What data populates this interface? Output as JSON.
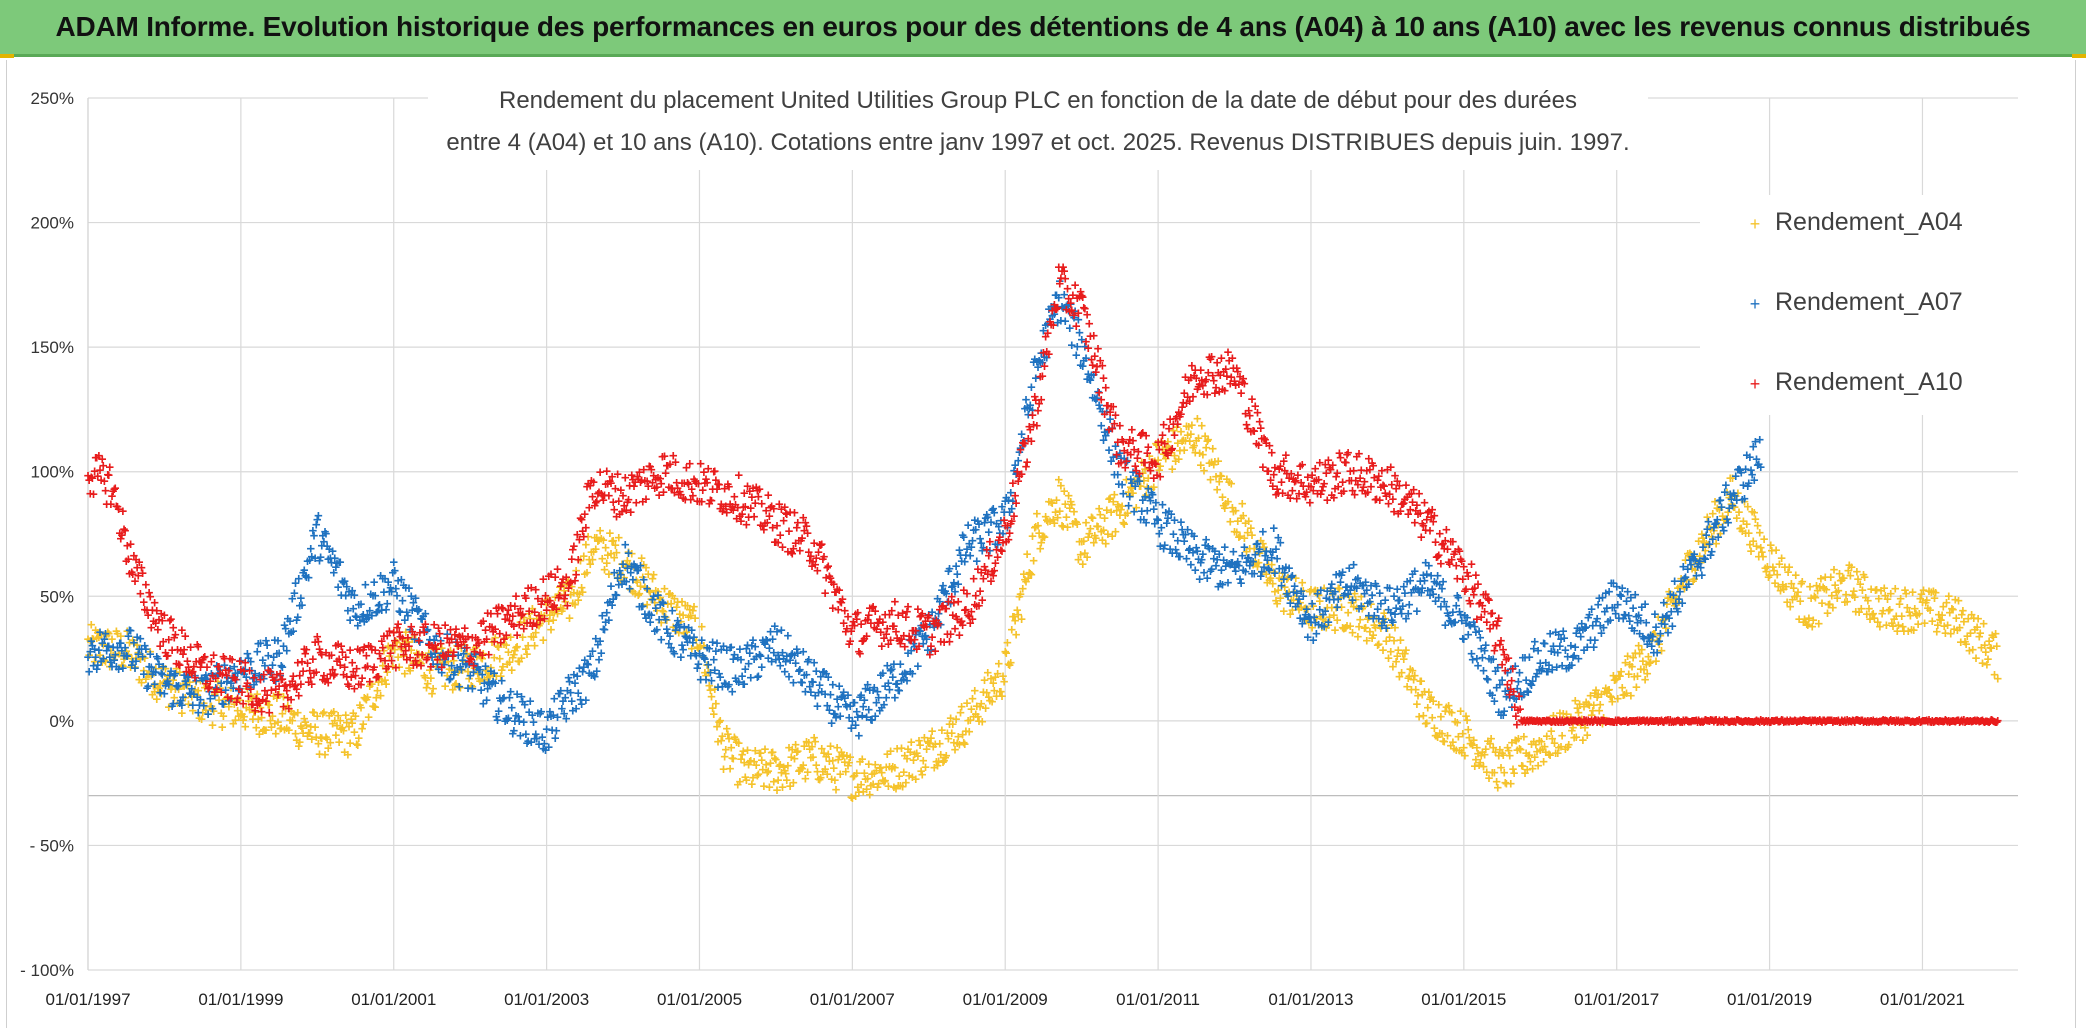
{
  "banner": {
    "title": "ADAM Informe. Evolution historique des performances en euros pour des détentions de 4 ans (A04) à 10 ans (A10) avec les revenus connus distribués"
  },
  "colors": {
    "banner_bg": "#7dc97a",
    "A04": "#f5c32c",
    "A07": "#1f72c0",
    "A10": "#e81c1c",
    "grid": "#d9d9d9"
  },
  "chart_data": {
    "type": "scatter",
    "title_line1": "Rendement du placement United Utilities Group PLC en fonction de la date de début pour des durées",
    "title_line2": "entre 4 (A04) et 10 ans (A10). Cotations entre janv 1997 et oct. 2025. Revenus DISTRIBUES depuis juin. 1997.",
    "xlabel": "",
    "ylabel": "",
    "xlim": [
      1997.0,
      2022.25
    ],
    "ylim": [
      -100,
      250
    ],
    "y_ticks": [
      250,
      200,
      150,
      100,
      50,
      0,
      -50,
      -100
    ],
    "y_tick_labels": [
      "250%",
      "200%",
      "150%",
      "100%",
      "50%",
      "0%",
      "- 50%",
      "- 100%"
    ],
    "x_ticks": [
      1997,
      1999,
      2001,
      2003,
      2005,
      2007,
      2009,
      2011,
      2013,
      2015,
      2017,
      2019,
      2021
    ],
    "x_tick_labels": [
      "01/01/1997",
      "01/01/1999",
      "01/01/2001",
      "01/01/2003",
      "01/01/2005",
      "01/01/2007",
      "01/01/2009",
      "01/01/2011",
      "01/01/2013",
      "01/01/2015",
      "01/01/2017",
      "01/01/2019",
      "01/01/2021"
    ],
    "legend": {
      "position": "top-right",
      "entries": [
        "Rendement_A04",
        "Rendement_A07",
        "Rendement_A10"
      ]
    },
    "series": [
      {
        "name": "Rendement_A04",
        "x": [
          1997.0,
          1997.5,
          1998.0,
          1998.5,
          1999.0,
          1999.5,
          2000.0,
          2000.5,
          2001.0,
          2001.5,
          2002.0,
          2002.5,
          2003.0,
          2003.3,
          2003.6,
          2004.0,
          2004.5,
          2005.0,
          2005.3,
          2005.6,
          2006.0,
          2006.5,
          2007.0,
          2007.5,
          2008.0,
          2008.5,
          2009.0,
          2009.4,
          2009.7,
          2010.0,
          2010.5,
          2011.0,
          2011.5,
          2012.0,
          2012.5,
          2013.0,
          2013.5,
          2014.0,
          2014.5,
          2015.0,
          2015.5,
          2016.0,
          2016.5,
          2017.0,
          2017.5,
          2018.0,
          2018.5,
          2019.0,
          2019.5,
          2020.0,
          2020.5,
          2021.0,
          2021.5,
          2022.0
        ],
        "y": [
          30,
          28,
          15,
          8,
          5,
          2,
          -5,
          -5,
          30,
          20,
          22,
          28,
          42,
          48,
          70,
          65,
          48,
          35,
          -10,
          -20,
          -20,
          -15,
          -22,
          -20,
          -12,
          0,
          20,
          75,
          90,
          70,
          85,
          105,
          115,
          85,
          55,
          45,
          45,
          35,
          5,
          -5,
          -20,
          -10,
          0,
          12,
          30,
          65,
          90,
          65,
          45,
          55,
          45,
          45,
          40,
          25
        ]
      },
      {
        "name": "Rendement_A07",
        "x": [
          1997.0,
          1997.5,
          1998.0,
          1998.5,
          1999.0,
          1999.5,
          2000.0,
          2000.5,
          2001.0,
          2001.5,
          2002.0,
          2002.5,
          2003.0,
          2003.3,
          2003.6,
          2004.0,
          2004.5,
          2005.0,
          2005.5,
          2006.0,
          2006.5,
          2007.0,
          2007.5,
          2008.0,
          2008.5,
          2009.0,
          2009.4,
          2009.7,
          2010.0,
          2010.5,
          2011.0,
          2011.5,
          2012.0,
          2012.5,
          2013.0,
          2013.5,
          2014.0,
          2014.5,
          2015.0,
          2015.5,
          2016.0,
          2016.5,
          2017.0,
          2017.5,
          2018.0,
          2018.5,
          2018.9
        ],
        "y": [
          28,
          30,
          15,
          10,
          20,
          25,
          75,
          45,
          55,
          30,
          20,
          5,
          -5,
          10,
          20,
          65,
          40,
          25,
          20,
          30,
          15,
          0,
          15,
          35,
          70,
          80,
          140,
          170,
          150,
          100,
          80,
          65,
          60,
          70,
          40,
          55,
          45,
          55,
          40,
          10,
          25,
          30,
          50,
          35,
          60,
          90,
          108
        ]
      },
      {
        "name": "Rendement_A10",
        "x": [
          1997.0,
          1997.3,
          1997.6,
          1998.0,
          1998.5,
          1999.0,
          1999.5,
          2000.0,
          2000.5,
          2001.0,
          2001.5,
          2002.0,
          2002.5,
          2003.0,
          2003.3,
          2003.6,
          2004.0,
          2004.5,
          2005.0,
          2005.5,
          2006.0,
          2006.5,
          2007.0,
          2007.5,
          2008.0,
          2008.5,
          2009.0,
          2009.4,
          2009.7,
          2010.0,
          2010.5,
          2011.0,
          2011.5,
          2012.0,
          2012.5,
          2013.0,
          2013.5,
          2014.0,
          2014.5,
          2015.0,
          2015.5,
          2015.75,
          2016.0,
          2017.0,
          2018.0,
          2019.0,
          2020.0,
          2021.0,
          2022.0
        ],
        "y": [
          100,
          95,
          60,
          35,
          20,
          15,
          10,
          25,
          20,
          30,
          30,
          30,
          40,
          50,
          55,
          95,
          90,
          100,
          95,
          90,
          80,
          70,
          35,
          40,
          35,
          45,
          75,
          125,
          175,
          165,
          110,
          105,
          140,
          140,
          100,
          95,
          100,
          95,
          80,
          60,
          30,
          0,
          0,
          0,
          0,
          0,
          0,
          0,
          0
        ]
      }
    ]
  }
}
